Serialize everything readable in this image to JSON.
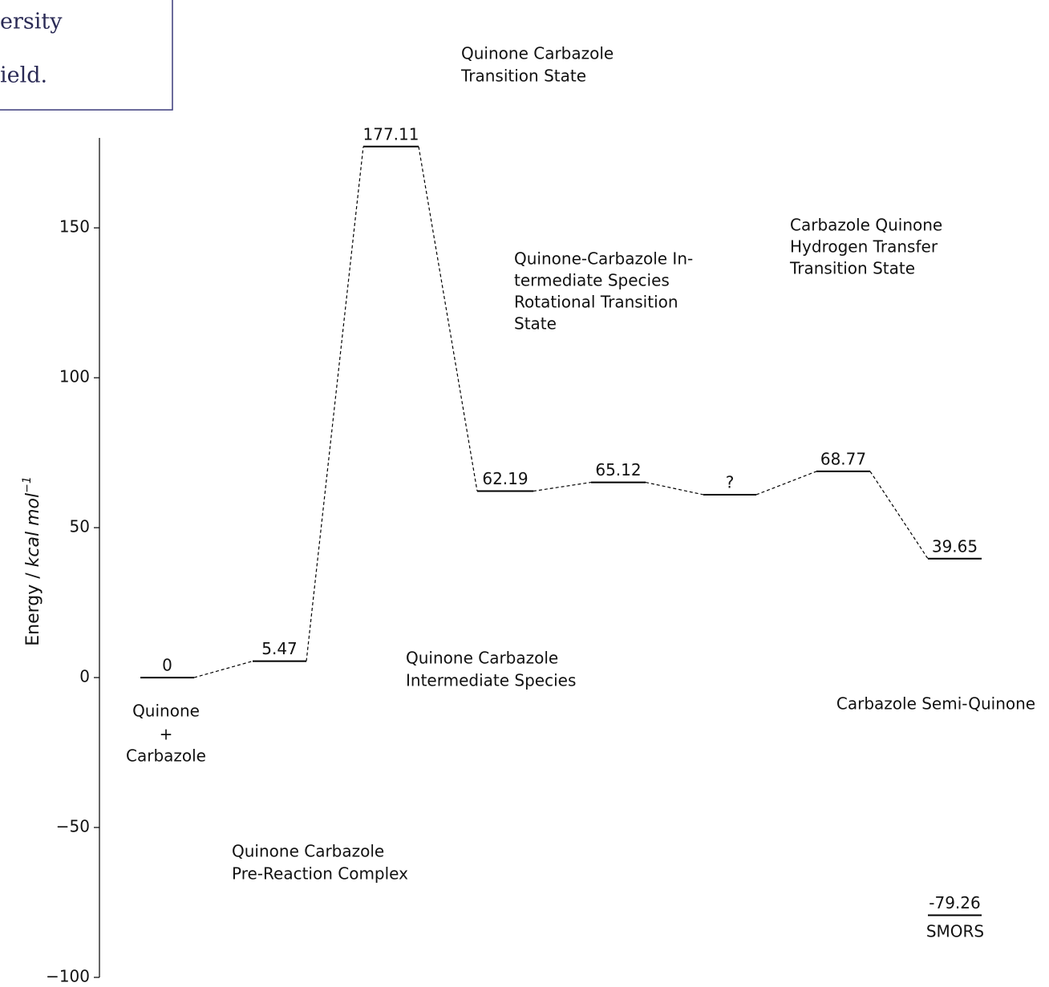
{
  "logo_fragment": [
    "ersity",
    "ield."
  ],
  "chart_data": {
    "type": "energy-diagram",
    "ylabel": [
      "Energy / ",
      "kcal mol",
      "−1"
    ],
    "ylim": [
      -100,
      180
    ],
    "yticks": [
      {
        "value": -100,
        "label": "−100"
      },
      {
        "value": -50,
        "label": "−50"
      },
      0,
      50,
      100,
      150
    ],
    "categories": [
      [
        "Quinone",
        "+",
        "Carbazole"
      ],
      [
        "Quinone Carbazole",
        "Pre-Reaction Complex"
      ],
      [
        "Quinone Carbazole",
        "Transition State"
      ],
      [
        "Quinone Carbazole",
        "Intermediate Species"
      ],
      [
        "Quinone-Carbazole In-",
        "termediate Species",
        "Rotational Transition",
        "State"
      ],
      null,
      [
        "Carbazole Quinone",
        "Hydrogen Transfer",
        "Transition State"
      ],
      [
        "Carbazole Semi-Quinone"
      ],
      [
        "SMORS"
      ]
    ],
    "values": [
      0,
      5.47,
      177.11,
      62.19,
      65.12,
      61,
      68.77,
      39.65,
      -79.26
    ],
    "value_labels": [
      "0",
      "5.47",
      "177.11",
      "62.19",
      "65.12",
      "?",
      "68.77",
      "39.65",
      "-79.26"
    ],
    "color": "#000000"
  }
}
